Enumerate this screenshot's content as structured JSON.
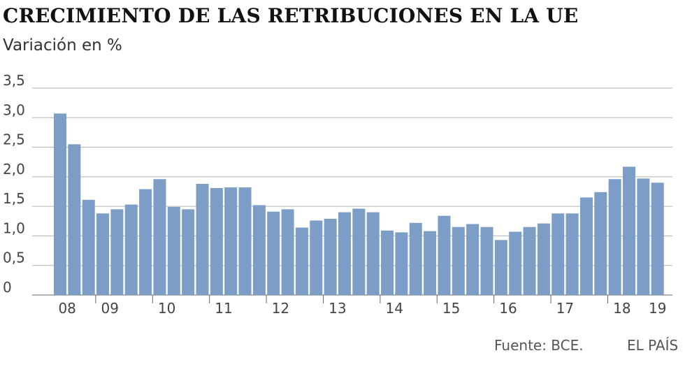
{
  "chart_data": {
    "type": "bar",
    "title": "CRECIMIENTO DE LAS RETRIBUCIONES EN LA UE",
    "subtitle": "Variación en %",
    "ylim": [
      0,
      3.5
    ],
    "yticks": [
      "0",
      "0,5",
      "1,0",
      "1,5",
      "2,0",
      "2,5",
      "3,0",
      "3,5"
    ],
    "grid": true,
    "bar_color": "#7b9dc6",
    "xtick_labels": [
      {
        "label": "08",
        "bar_index": 0.5
      },
      {
        "label": "09",
        "bar_index": 3.5
      },
      {
        "label": "10",
        "bar_index": 7.5
      },
      {
        "label": "11",
        "bar_index": 11.5
      },
      {
        "label": "12",
        "bar_index": 15.5
      },
      {
        "label": "13",
        "bar_index": 19.5
      },
      {
        "label": "14",
        "bar_index": 23.5
      },
      {
        "label": "15",
        "bar_index": 27.5
      },
      {
        "label": "16",
        "bar_index": 31.5
      },
      {
        "label": "17",
        "bar_index": 35.5
      },
      {
        "label": "18",
        "bar_index": 39.5
      },
      {
        "label": "19",
        "bar_index": 42
      }
    ],
    "values": [
      3.07,
      2.55,
      1.61,
      1.38,
      1.45,
      1.53,
      1.79,
      1.96,
      1.49,
      1.45,
      1.88,
      1.81,
      1.82,
      1.82,
      1.52,
      1.41,
      1.45,
      1.14,
      1.26,
      1.29,
      1.4,
      1.46,
      1.4,
      1.09,
      1.06,
      1.22,
      1.08,
      1.34,
      1.15,
      1.2,
      1.15,
      0.93,
      1.07,
      1.15,
      1.21,
      1.38,
      1.38,
      1.65,
      1.74,
      1.96,
      2.17,
      1.97,
      1.9
    ]
  },
  "footer": {
    "source": "Fuente: BCE.",
    "brand": "EL PAÍS"
  }
}
